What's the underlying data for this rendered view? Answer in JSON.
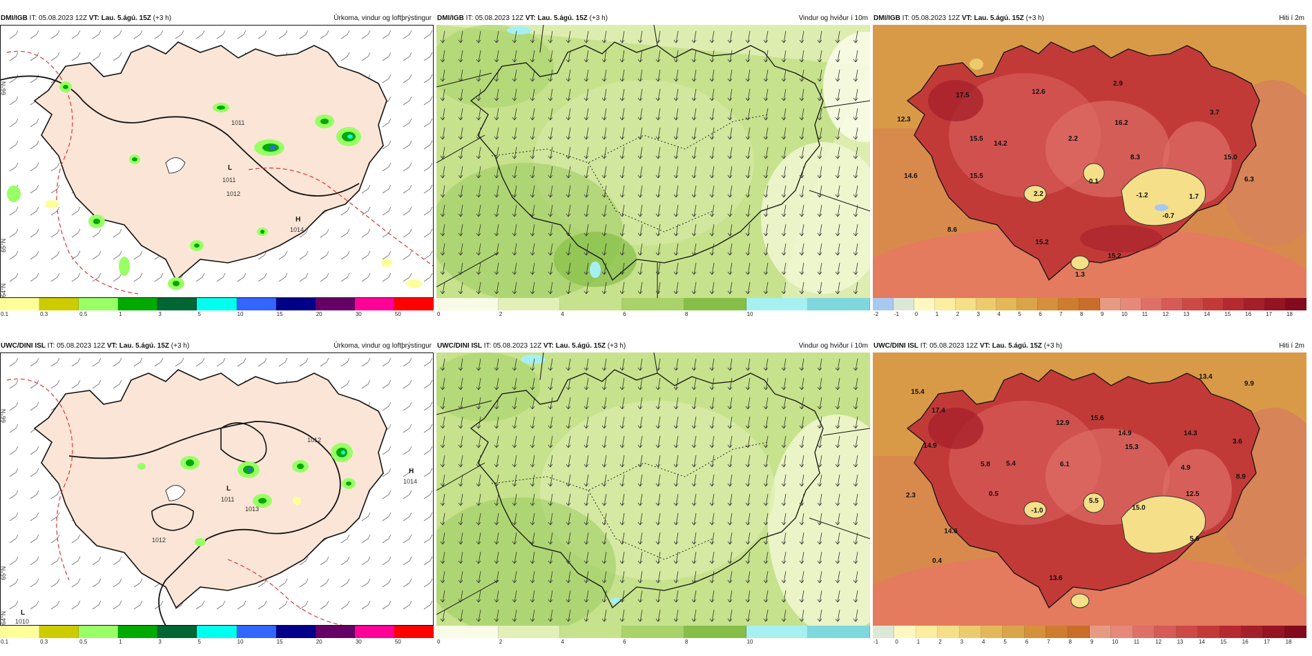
{
  "rows": [
    {
      "model": "DMI/IGB",
      "init_label": "IT: 05.08.2023 12Z",
      "valid_label": "VT: Lau. 5.ágú. 15Z",
      "lead": "(+3 h)",
      "precip": {
        "title": "Úrkoma, vindur og loftþrýstingur",
        "pressure_labels": [
          {
            "text": "L",
            "value": "1011"
          },
          {
            "text": "H",
            "value": "1014"
          }
        ],
        "isobar_labels": [
          "1011",
          "1012"
        ],
        "lat_labels": [
          "66°N",
          "65°N",
          "64°N"
        ]
      },
      "wind": {
        "title": "Vindur og hviður í 10m"
      },
      "temp": {
        "title": "Hiti í 2m",
        "values": [
          "17.5",
          "12.6",
          "2.9",
          "12.3",
          "15.5",
          "14.2",
          "16.2",
          "3.7",
          "2.2",
          "8.3",
          "15.0",
          "14.6",
          "15.5",
          "0.1",
          "2.2",
          "-1.2",
          "1.7",
          "6.3",
          "-0.7",
          "8.6",
          "15.2",
          "15.2",
          "1.3"
        ]
      },
      "temp_scale": {
        "ticks": [
          "-2",
          "-1",
          "0",
          "1",
          "2",
          "3",
          "4",
          "5",
          "6",
          "7",
          "8",
          "9",
          "10",
          "11",
          "12",
          "13",
          "14",
          "15",
          "16",
          "17",
          "18"
        ],
        "colors": [
          "#a9c8f0",
          "#dbe8d6",
          "#fff7c2",
          "#fbeea0",
          "#f5df88",
          "#eccb6c",
          "#e3b859",
          "#daa448",
          "#d4903a",
          "#ce7c2f",
          "#c86e2a",
          "#e79a82",
          "#e6887a",
          "#de7068",
          "#d65a56",
          "#cc4a45",
          "#c23a38",
          "#b52a30",
          "#a51f2a",
          "#941424",
          "#820b1e"
        ]
      }
    },
    {
      "model": "UWC/DINI ISL",
      "init_label": "IT: 05.08.2023 12Z",
      "valid_label": "VT: Lau. 5.ágú. 15Z",
      "lead": "(+3 h)",
      "precip": {
        "title": "Úrkoma, vindur og loftþrýstingur",
        "pressure_labels": [
          {
            "text": "L",
            "value": "1011"
          },
          {
            "text": "H",
            "value": "1014"
          },
          {
            "text": "L",
            "value": "1010"
          }
        ],
        "isobar_labels": [
          "1012",
          "1012",
          "1013"
        ],
        "lat_labels": [
          "66°N",
          "65°N",
          "64°N"
        ]
      },
      "wind": {
        "title": "Vindur og hviður í 10m"
      },
      "temp": {
        "title": "Hiti í 2m",
        "values": [
          "13.4",
          "9.9",
          "15.4",
          "17.4",
          "12.9",
          "15.6",
          "14.9",
          "15.3",
          "14.9",
          "14.3",
          "3.6",
          "6.1",
          "5.8",
          "5.4",
          "4.9",
          "8.9",
          "2.3",
          "0.5",
          "-1.0",
          "5.5",
          "15.0",
          "12.5",
          "14.6",
          "5.6",
          "0.4",
          "13.6"
        ]
      },
      "temp_scale": {
        "ticks": [
          "-1",
          "0",
          "1",
          "2",
          "3",
          "4",
          "5",
          "6",
          "7",
          "8",
          "9",
          "10",
          "11",
          "12",
          "13",
          "14",
          "15",
          "16",
          "17",
          "18"
        ],
        "colors": [
          "#dbe8d6",
          "#fff7c2",
          "#fbeea0",
          "#f5df88",
          "#eccb6c",
          "#e3b859",
          "#daa448",
          "#d4903a",
          "#ce7c2f",
          "#c86e2a",
          "#e79a82",
          "#e6887a",
          "#de7068",
          "#d65a56",
          "#cc4a45",
          "#c23a38",
          "#b52a30",
          "#a51f2a",
          "#941424",
          "#820b1e"
        ]
      }
    }
  ],
  "precip_scale": {
    "ticks": [
      "0.1",
      "0.3",
      "0.5",
      "1",
      "3",
      "5",
      "10",
      "15",
      "20",
      "30",
      "50"
    ],
    "colors": [
      "#ffff99",
      "#cccc00",
      "#99ff66",
      "#00aa00",
      "#006633",
      "#00ffee",
      "#3366ff",
      "#000088",
      "#660066",
      "#ff0099",
      "#ff0000"
    ]
  },
  "wind_scale": {
    "ticks": [
      "0",
      "2",
      "4",
      "6",
      "8",
      "10"
    ],
    "colors": [
      "#f8fbe6",
      "#e2f0b8",
      "#c6e28c",
      "#a9d36a",
      "#86bf48",
      "#a6f0f2",
      "#7ed8dd"
    ]
  }
}
